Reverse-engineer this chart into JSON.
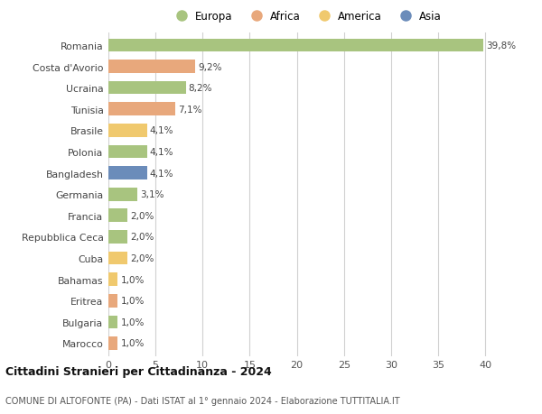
{
  "countries": [
    "Romania",
    "Costa d'Avorio",
    "Ucraina",
    "Tunisia",
    "Brasile",
    "Polonia",
    "Bangladesh",
    "Germania",
    "Francia",
    "Repubblica Ceca",
    "Cuba",
    "Bahamas",
    "Eritrea",
    "Bulgaria",
    "Marocco"
  ],
  "values": [
    39.8,
    9.2,
    8.2,
    7.1,
    4.1,
    4.1,
    4.1,
    3.1,
    2.0,
    2.0,
    2.0,
    1.0,
    1.0,
    1.0,
    1.0
  ],
  "labels": [
    "39,8%",
    "9,2%",
    "8,2%",
    "7,1%",
    "4,1%",
    "4,1%",
    "4,1%",
    "3,1%",
    "2,0%",
    "2,0%",
    "2,0%",
    "1,0%",
    "1,0%",
    "1,0%",
    "1,0%"
  ],
  "continents": [
    "Europa",
    "Africa",
    "Europa",
    "Africa",
    "America",
    "Europa",
    "Asia",
    "Europa",
    "Europa",
    "Europa",
    "America",
    "America",
    "Africa",
    "Europa",
    "Africa"
  ],
  "colors": {
    "Europa": "#a8c47f",
    "Africa": "#e8a87c",
    "America": "#f0c96e",
    "Asia": "#6b8cba"
  },
  "legend_order": [
    "Europa",
    "Africa",
    "America",
    "Asia"
  ],
  "title": "Cittadini Stranieri per Cittadinanza - 2024",
  "subtitle": "COMUNE DI ALTOFONTE (PA) - Dati ISTAT al 1° gennaio 2024 - Elaborazione TUTTITALIA.IT",
  "xlim": [
    0,
    42
  ],
  "xticks": [
    0,
    5,
    10,
    15,
    20,
    25,
    30,
    35,
    40
  ],
  "background_color": "#ffffff",
  "grid_color": "#d0d0d0"
}
